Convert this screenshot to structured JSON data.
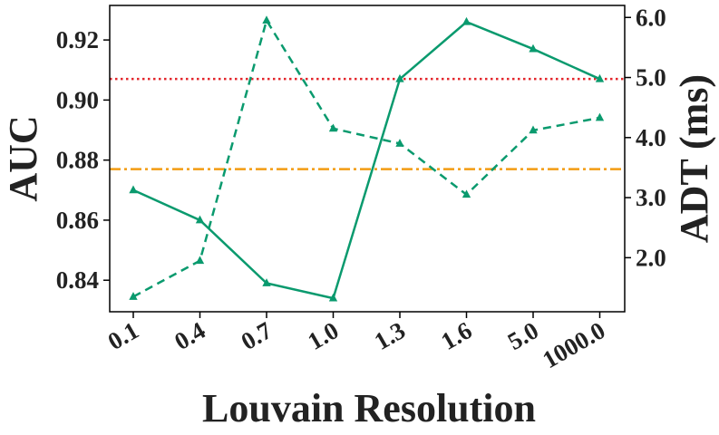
{
  "chart_data": {
    "type": "line",
    "title": "",
    "xlabel": "Louvain Resolution",
    "ylabel": "AUC",
    "y2label": "ADT (ms)",
    "categories": [
      "0.1",
      "0.4",
      "0.7",
      "1.0",
      "1.3",
      "1.6",
      "5.0",
      "1000.0"
    ],
    "ylim": [
      0.8295,
      0.9315
    ],
    "y2lim": [
      1.1,
      6.2
    ],
    "yticks": [
      0.84,
      0.86,
      0.88,
      0.9,
      0.92
    ],
    "yticklabels": [
      "0.84",
      "0.86",
      "0.88",
      "0.90",
      "0.92"
    ],
    "y2ticks": [
      2.0,
      3.0,
      4.0,
      5.0,
      6.0
    ],
    "y2ticklabels": [
      "2.0",
      "3.0",
      "4.0",
      "5.0",
      "6.0"
    ],
    "series": [
      {
        "axis": "left",
        "style": "solid",
        "color": "#0a9a6e",
        "values": [
          0.87,
          0.86,
          0.839,
          0.834,
          0.907,
          0.926,
          0.917,
          0.907
        ]
      },
      {
        "axis": "right",
        "style": "dashed",
        "color": "#0a9a6e",
        "values": [
          1.35,
          1.95,
          5.95,
          4.15,
          3.9,
          3.05,
          4.12,
          4.33
        ]
      }
    ],
    "reference_lines": [
      {
        "axis": "left",
        "value": 0.907,
        "style": "dotted",
        "color": "#e3262c"
      },
      {
        "axis": "left",
        "value": 0.877,
        "style": "dashdot",
        "color": "#f39c12"
      }
    ],
    "grid": false,
    "legend": "none"
  }
}
